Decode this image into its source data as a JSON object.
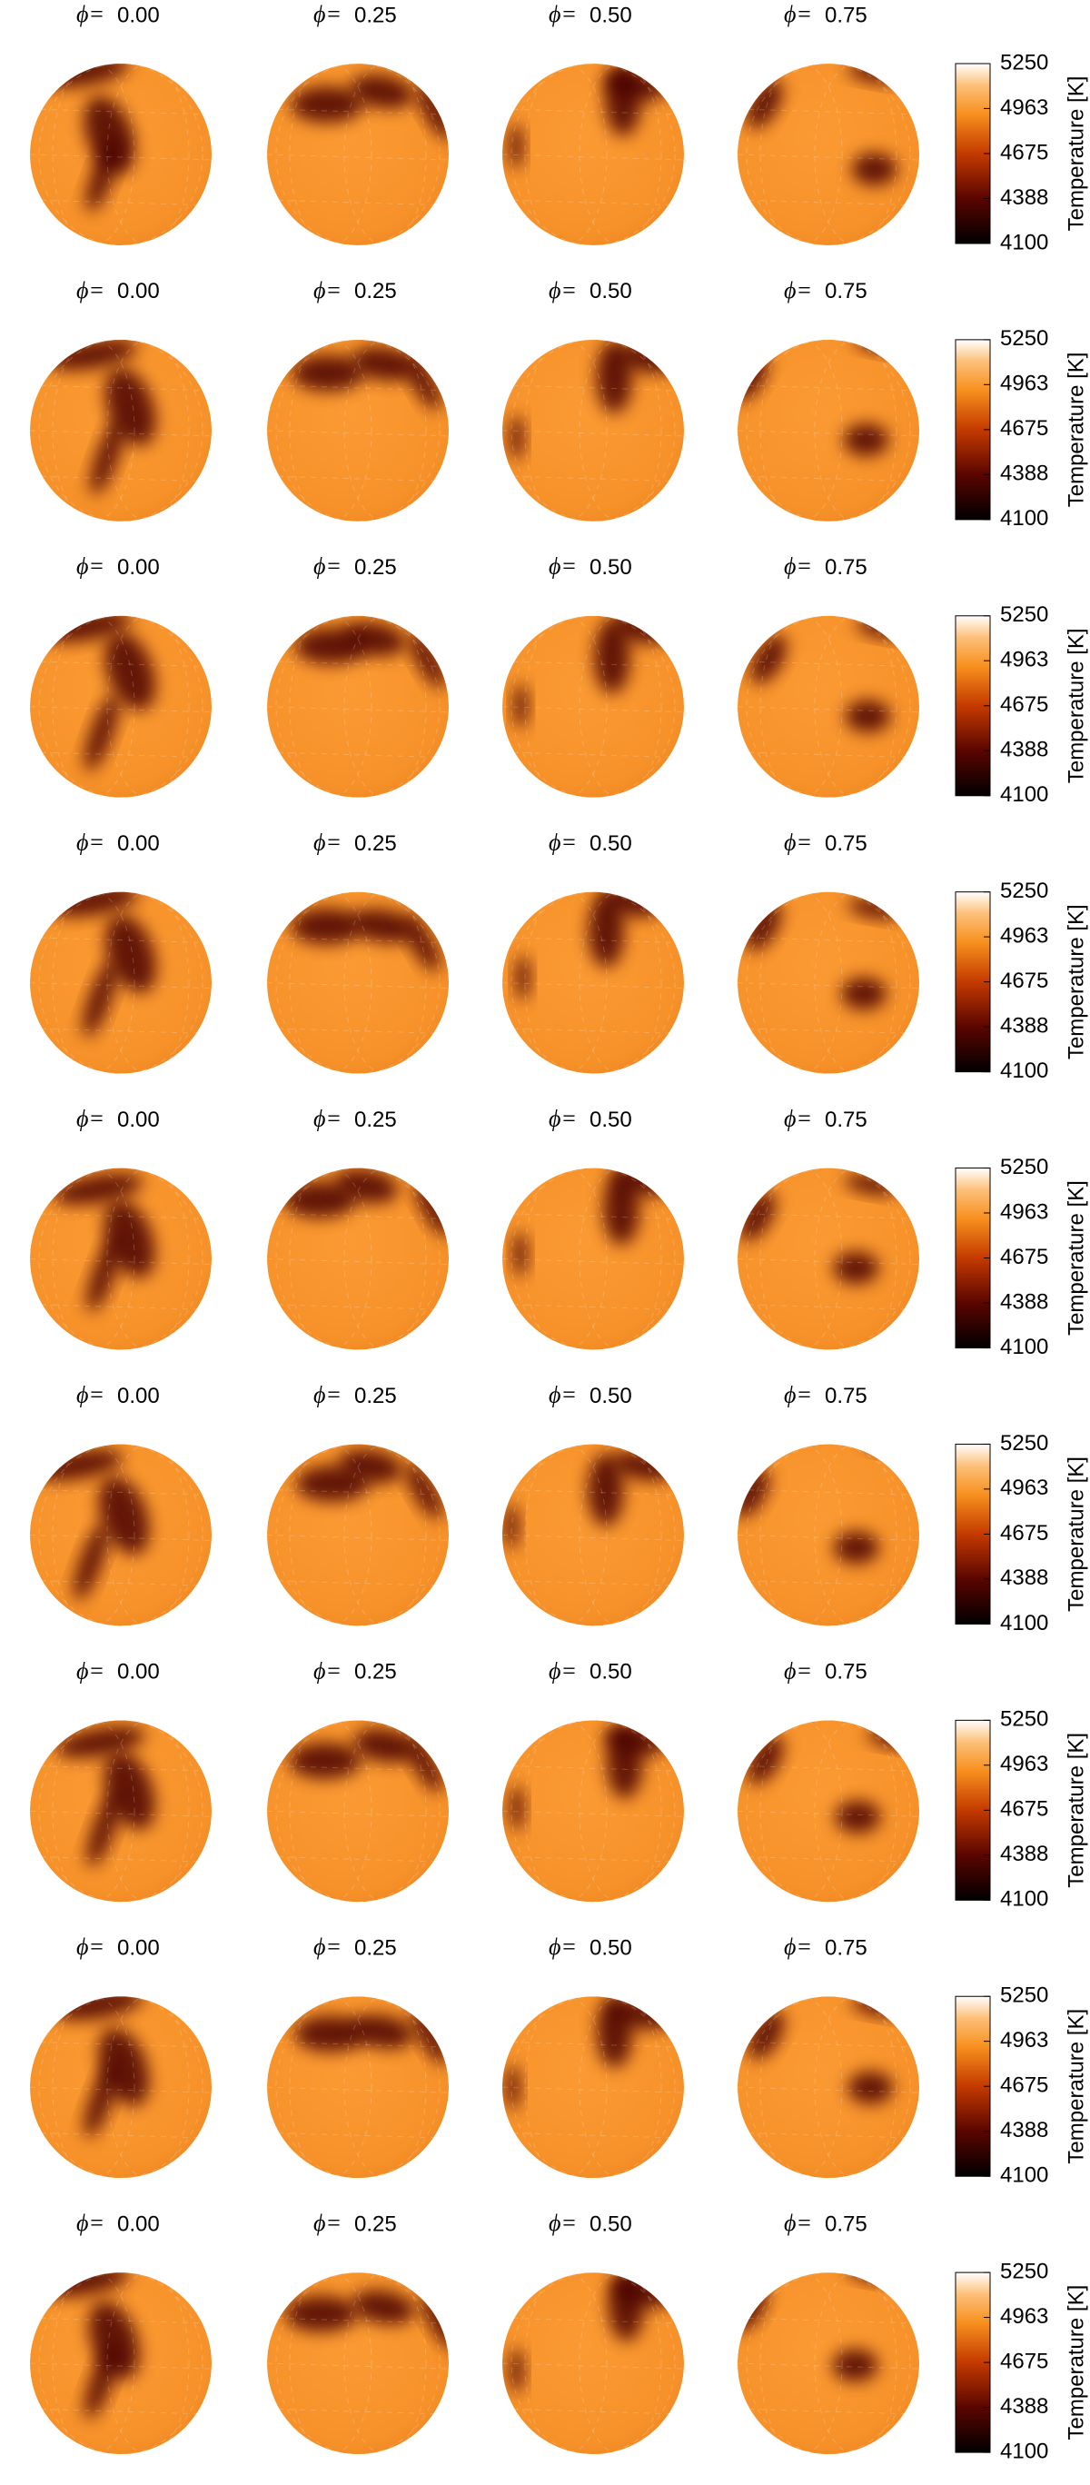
{
  "rows": [
    {
      "panels": [
        {
          "symbol": "ϕ=",
          "phase": "0.00"
        },
        {
          "symbol": "ϕ=",
          "phase": "0.25"
        },
        {
          "symbol": "ϕ=",
          "phase": "0.50"
        },
        {
          "symbol": "ϕ=",
          "phase": "0.75"
        }
      ],
      "colorbar": {
        "label": "Temperature [K]",
        "lim": [
          4100,
          5250
        ],
        "ticks": [
          4100,
          4388,
          4675,
          4963,
          5250
        ]
      }
    },
    {
      "panels": [
        {
          "symbol": "ϕ=",
          "phase": "0.00"
        },
        {
          "symbol": "ϕ=",
          "phase": "0.25"
        },
        {
          "symbol": "ϕ=",
          "phase": "0.50"
        },
        {
          "symbol": "ϕ=",
          "phase": "0.75"
        }
      ],
      "colorbar": {
        "label": "Temperature [K]",
        "lim": [
          4100,
          5250
        ],
        "ticks": [
          4100,
          4388,
          4675,
          4963,
          5250
        ]
      }
    },
    {
      "panels": [
        {
          "symbol": "ϕ=",
          "phase": "0.00"
        },
        {
          "symbol": "ϕ=",
          "phase": "0.25"
        },
        {
          "symbol": "ϕ=",
          "phase": "0.50"
        },
        {
          "symbol": "ϕ=",
          "phase": "0.75"
        }
      ],
      "colorbar": {
        "label": "Temperature [K]",
        "lim": [
          4100,
          5250
        ],
        "ticks": [
          4100,
          4388,
          4675,
          4963,
          5250
        ]
      }
    },
    {
      "panels": [
        {
          "symbol": "ϕ=",
          "phase": "0.00"
        },
        {
          "symbol": "ϕ=",
          "phase": "0.25"
        },
        {
          "symbol": "ϕ=",
          "phase": "0.50"
        },
        {
          "symbol": "ϕ=",
          "phase": "0.75"
        }
      ],
      "colorbar": {
        "label": "Temperature [K]",
        "lim": [
          4100,
          5250
        ],
        "ticks": [
          4100,
          4388,
          4675,
          4963,
          5250
        ]
      }
    },
    {
      "panels": [
        {
          "symbol": "ϕ=",
          "phase": "0.00"
        },
        {
          "symbol": "ϕ=",
          "phase": "0.25"
        },
        {
          "symbol": "ϕ=",
          "phase": "0.50"
        },
        {
          "symbol": "ϕ=",
          "phase": "0.75"
        }
      ],
      "colorbar": {
        "label": "Temperature [K]",
        "lim": [
          4100,
          5250
        ],
        "ticks": [
          4100,
          4388,
          4675,
          4963,
          5250
        ]
      }
    },
    {
      "panels": [
        {
          "symbol": "ϕ=",
          "phase": "0.00"
        },
        {
          "symbol": "ϕ=",
          "phase": "0.25"
        },
        {
          "symbol": "ϕ=",
          "phase": "0.50"
        },
        {
          "symbol": "ϕ=",
          "phase": "0.75"
        }
      ],
      "colorbar": {
        "label": "Temperature [K]",
        "lim": [
          4100,
          5250
        ],
        "ticks": [
          4100,
          4388,
          4675,
          4963,
          5250
        ]
      }
    },
    {
      "panels": [
        {
          "symbol": "ϕ=",
          "phase": "0.00"
        },
        {
          "symbol": "ϕ=",
          "phase": "0.25"
        },
        {
          "symbol": "ϕ=",
          "phase": "0.50"
        },
        {
          "symbol": "ϕ=",
          "phase": "0.75"
        }
      ],
      "colorbar": {
        "label": "Temperature [K]",
        "lim": [
          4100,
          5250
        ],
        "ticks": [
          4100,
          4388,
          4675,
          4963,
          5250
        ]
      }
    },
    {
      "panels": [
        {
          "symbol": "ϕ=",
          "phase": "0.00"
        },
        {
          "symbol": "ϕ=",
          "phase": "0.25"
        },
        {
          "symbol": "ϕ=",
          "phase": "0.50"
        },
        {
          "symbol": "ϕ=",
          "phase": "0.75"
        }
      ],
      "colorbar": {
        "label": "Temperature [K]",
        "lim": [
          4100,
          5250
        ],
        "ticks": [
          4100,
          4388,
          4675,
          4963,
          5250
        ]
      }
    },
    {
      "panels": [
        {
          "symbol": "ϕ=",
          "phase": "0.00"
        },
        {
          "symbol": "ϕ=",
          "phase": "0.25"
        },
        {
          "symbol": "ϕ=",
          "phase": "0.50"
        },
        {
          "symbol": "ϕ=",
          "phase": "0.75"
        }
      ],
      "colorbar": {
        "label": "Temperature [K]",
        "lim": [
          4100,
          5250
        ],
        "ticks": [
          4100,
          4388,
          4675,
          4963,
          5250
        ]
      }
    }
  ]
}
